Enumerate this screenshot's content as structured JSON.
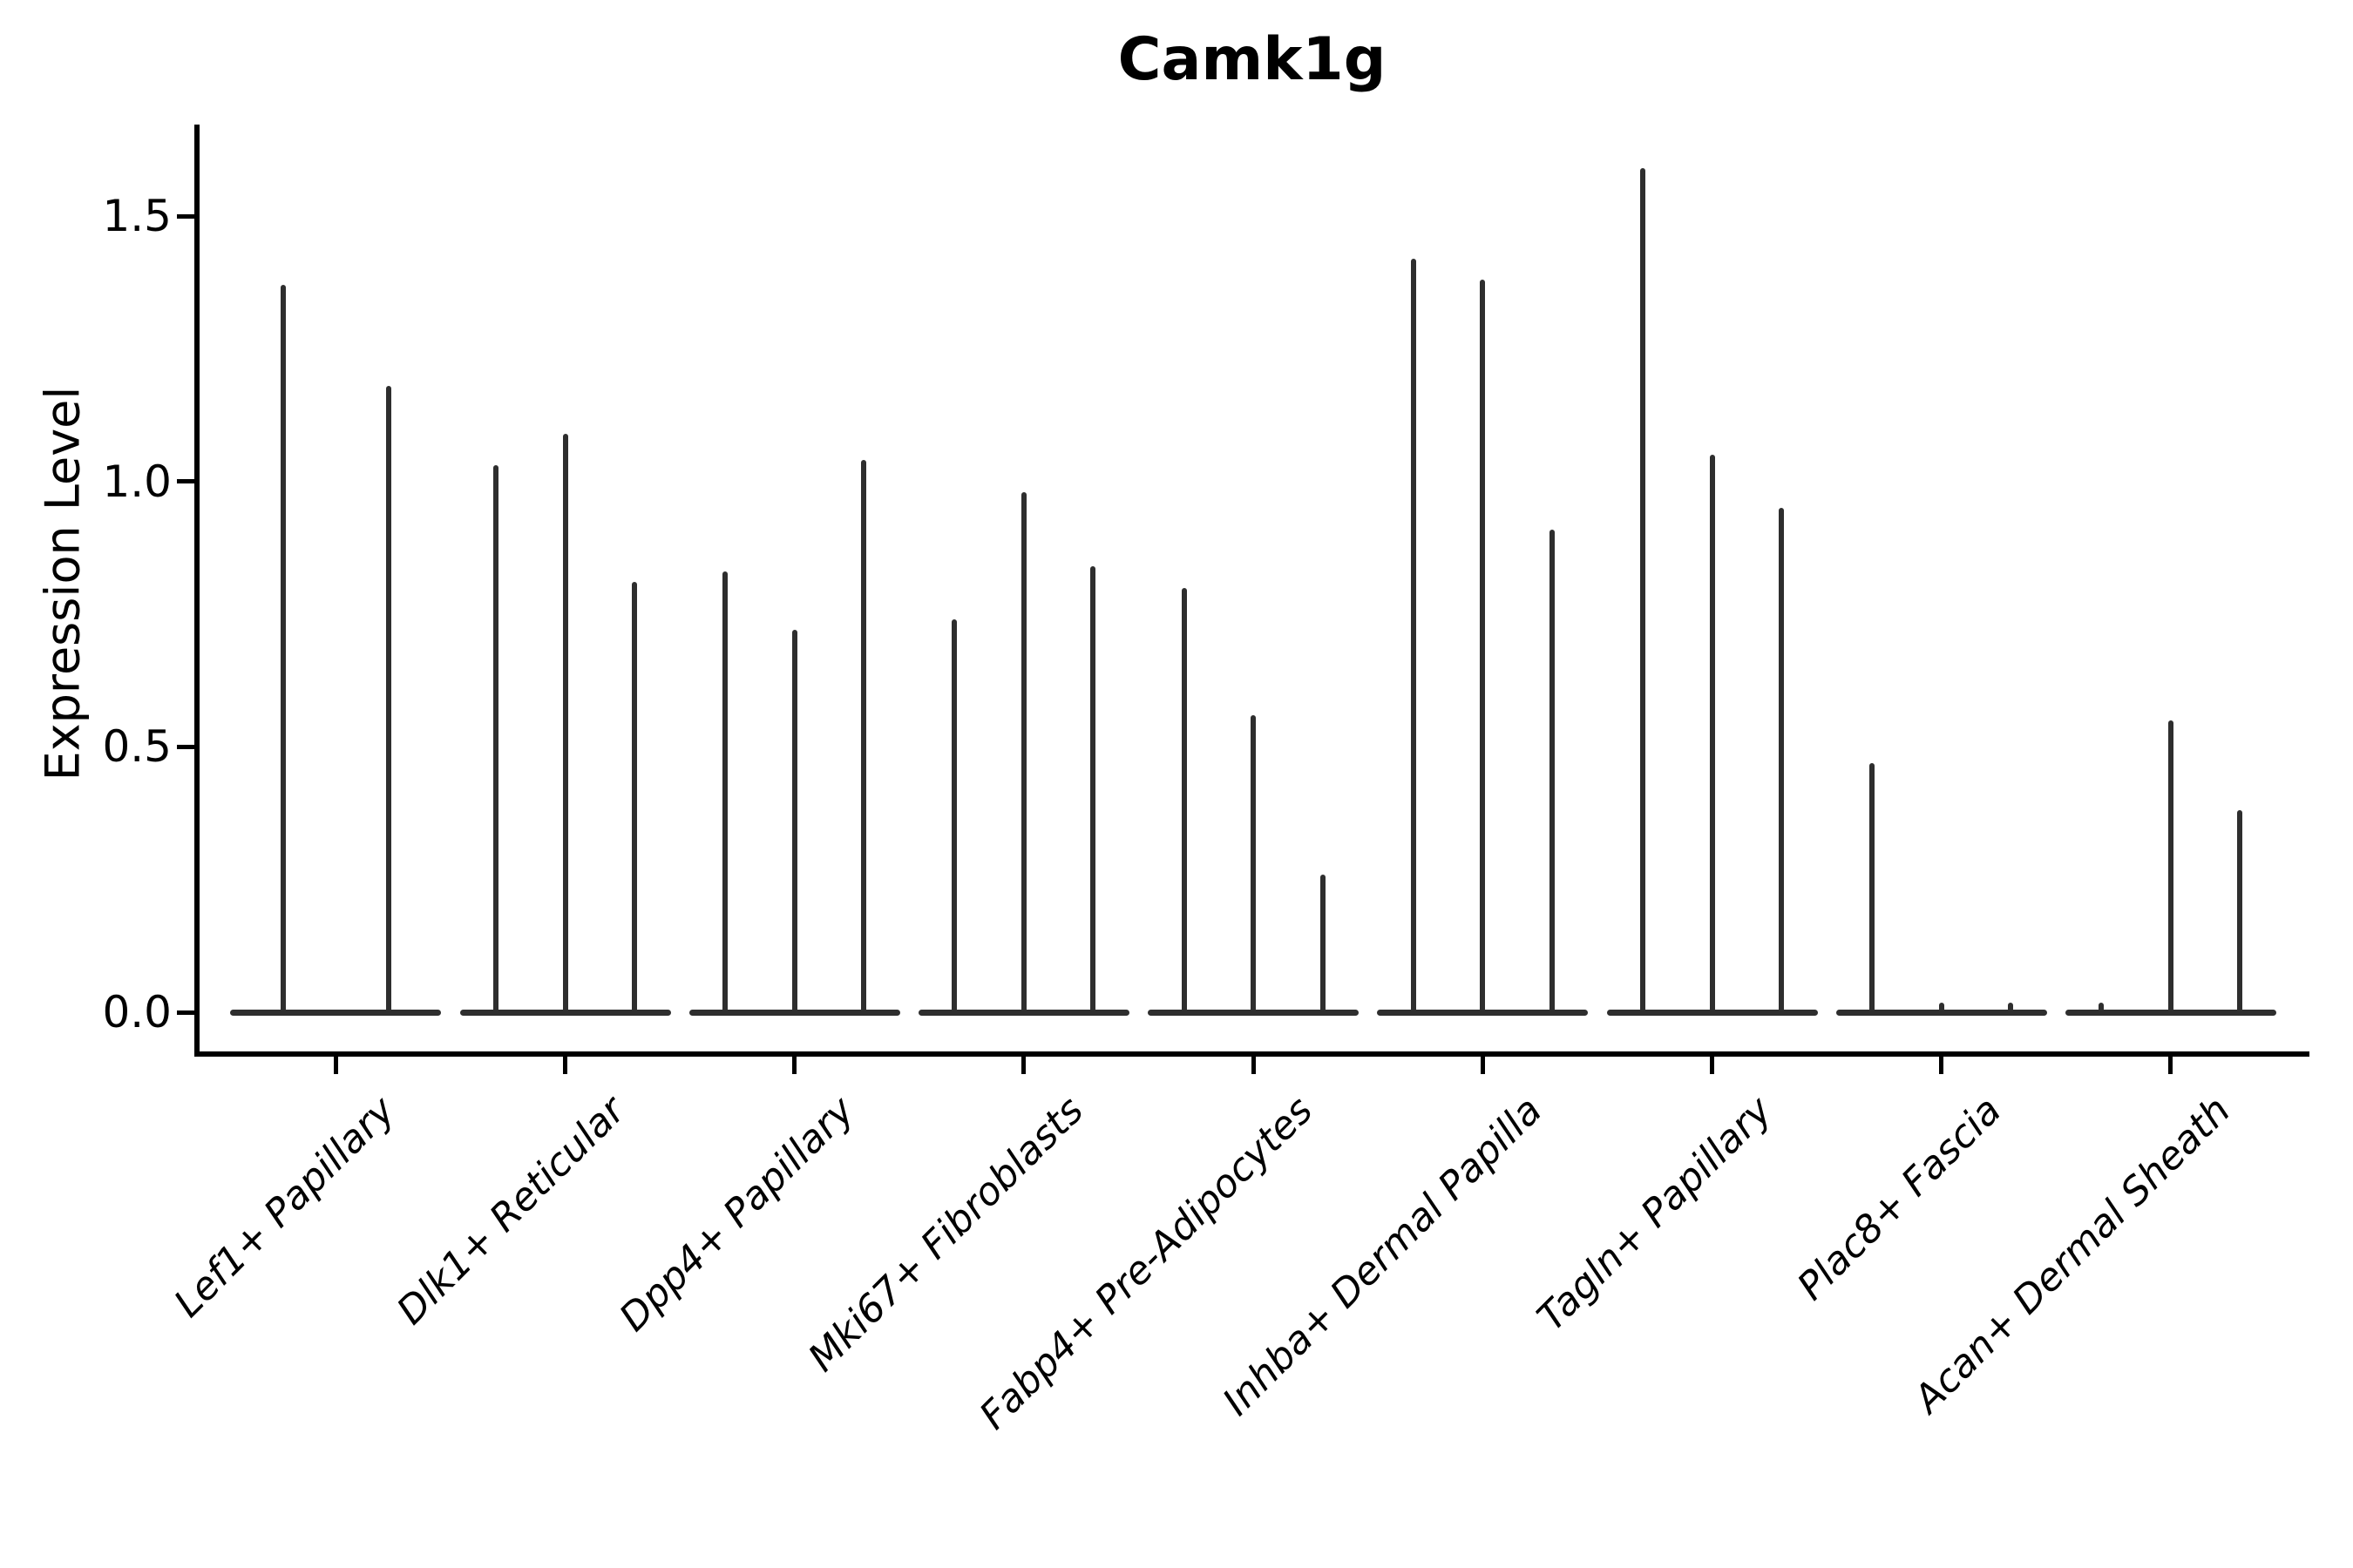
{
  "title": "Camk1g",
  "y_axis": {
    "label": "Expression Level",
    "tick_labels": [
      "1.5",
      "1.0",
      "0.5",
      "0.0"
    ],
    "tick_values": [
      1.5,
      1.0,
      0.5,
      0.0
    ]
  },
  "x_axis": {
    "tick_labels": [
      "Lef1+ Papillary",
      "Dlk1+ Reticular",
      "Dpp4+ Papillary",
      "Mki67+ Fibroblasts",
      "Fabp4+ Pre-Adipocytes",
      "Inhba+ Dermal Papilla",
      "Tagln+ Papillary",
      "Plac8+ Fascia",
      "Acan+ Dermal Sheath"
    ]
  },
  "colors": {
    "background": "#ffffff",
    "axis": "#000000",
    "text": "#000000",
    "violin": "#2e2e2e"
  },
  "chart_data": {
    "type": "violin",
    "title": "Camk1g",
    "xlabel": "",
    "ylabel": "Expression Level",
    "ylim": [
      0,
      1.67
    ],
    "yticks": [
      0.0,
      0.5,
      1.0,
      1.5
    ],
    "grid": false,
    "legend": "none",
    "description": "Violin plot of Camk1g expression; expression is concentrated at 0 so each violin collapses to a flat base with a thin spike reaching its maximum expression value. Each category holds sub-violins.",
    "categories": [
      "Lef1+ Papillary",
      "Dlk1+ Reticular",
      "Dpp4+ Papillary",
      "Mki67+ Fibroblasts",
      "Fabp4+ Pre-Adipocytes",
      "Inhba+ Dermal Papilla",
      "Tagln+ Papillary",
      "Plac8+ Fascia",
      "Acan+ Dermal Sheath"
    ],
    "groups": [
      {
        "category": "Lef1+ Papillary",
        "violin_max_values": [
          1.37,
          1.18
        ]
      },
      {
        "category": "Dlk1+ Reticular",
        "violin_max_values": [
          1.03,
          1.09,
          0.81
        ]
      },
      {
        "category": "Dpp4+ Papillary",
        "violin_max_values": [
          0.83,
          0.72,
          1.04
        ]
      },
      {
        "category": "Mki67+ Fibroblasts",
        "violin_max_values": [
          0.74,
          0.98,
          0.84
        ]
      },
      {
        "category": "Fabp4+ Pre-Adipocytes",
        "violin_max_values": [
          0.8,
          0.56,
          0.26
        ]
      },
      {
        "category": "Inhba+ Dermal Papilla",
        "violin_max_values": [
          1.42,
          1.38,
          0.91
        ]
      },
      {
        "category": "Tagln+ Papillary",
        "violin_max_values": [
          1.59,
          1.05,
          0.95
        ]
      },
      {
        "category": "Plac8+ Fascia",
        "violin_max_values": [
          0.47,
          0,
          0
        ]
      },
      {
        "category": "Acan+ Dermal Sheath",
        "violin_max_values": [
          0,
          0.55,
          0.38
        ]
      }
    ]
  }
}
